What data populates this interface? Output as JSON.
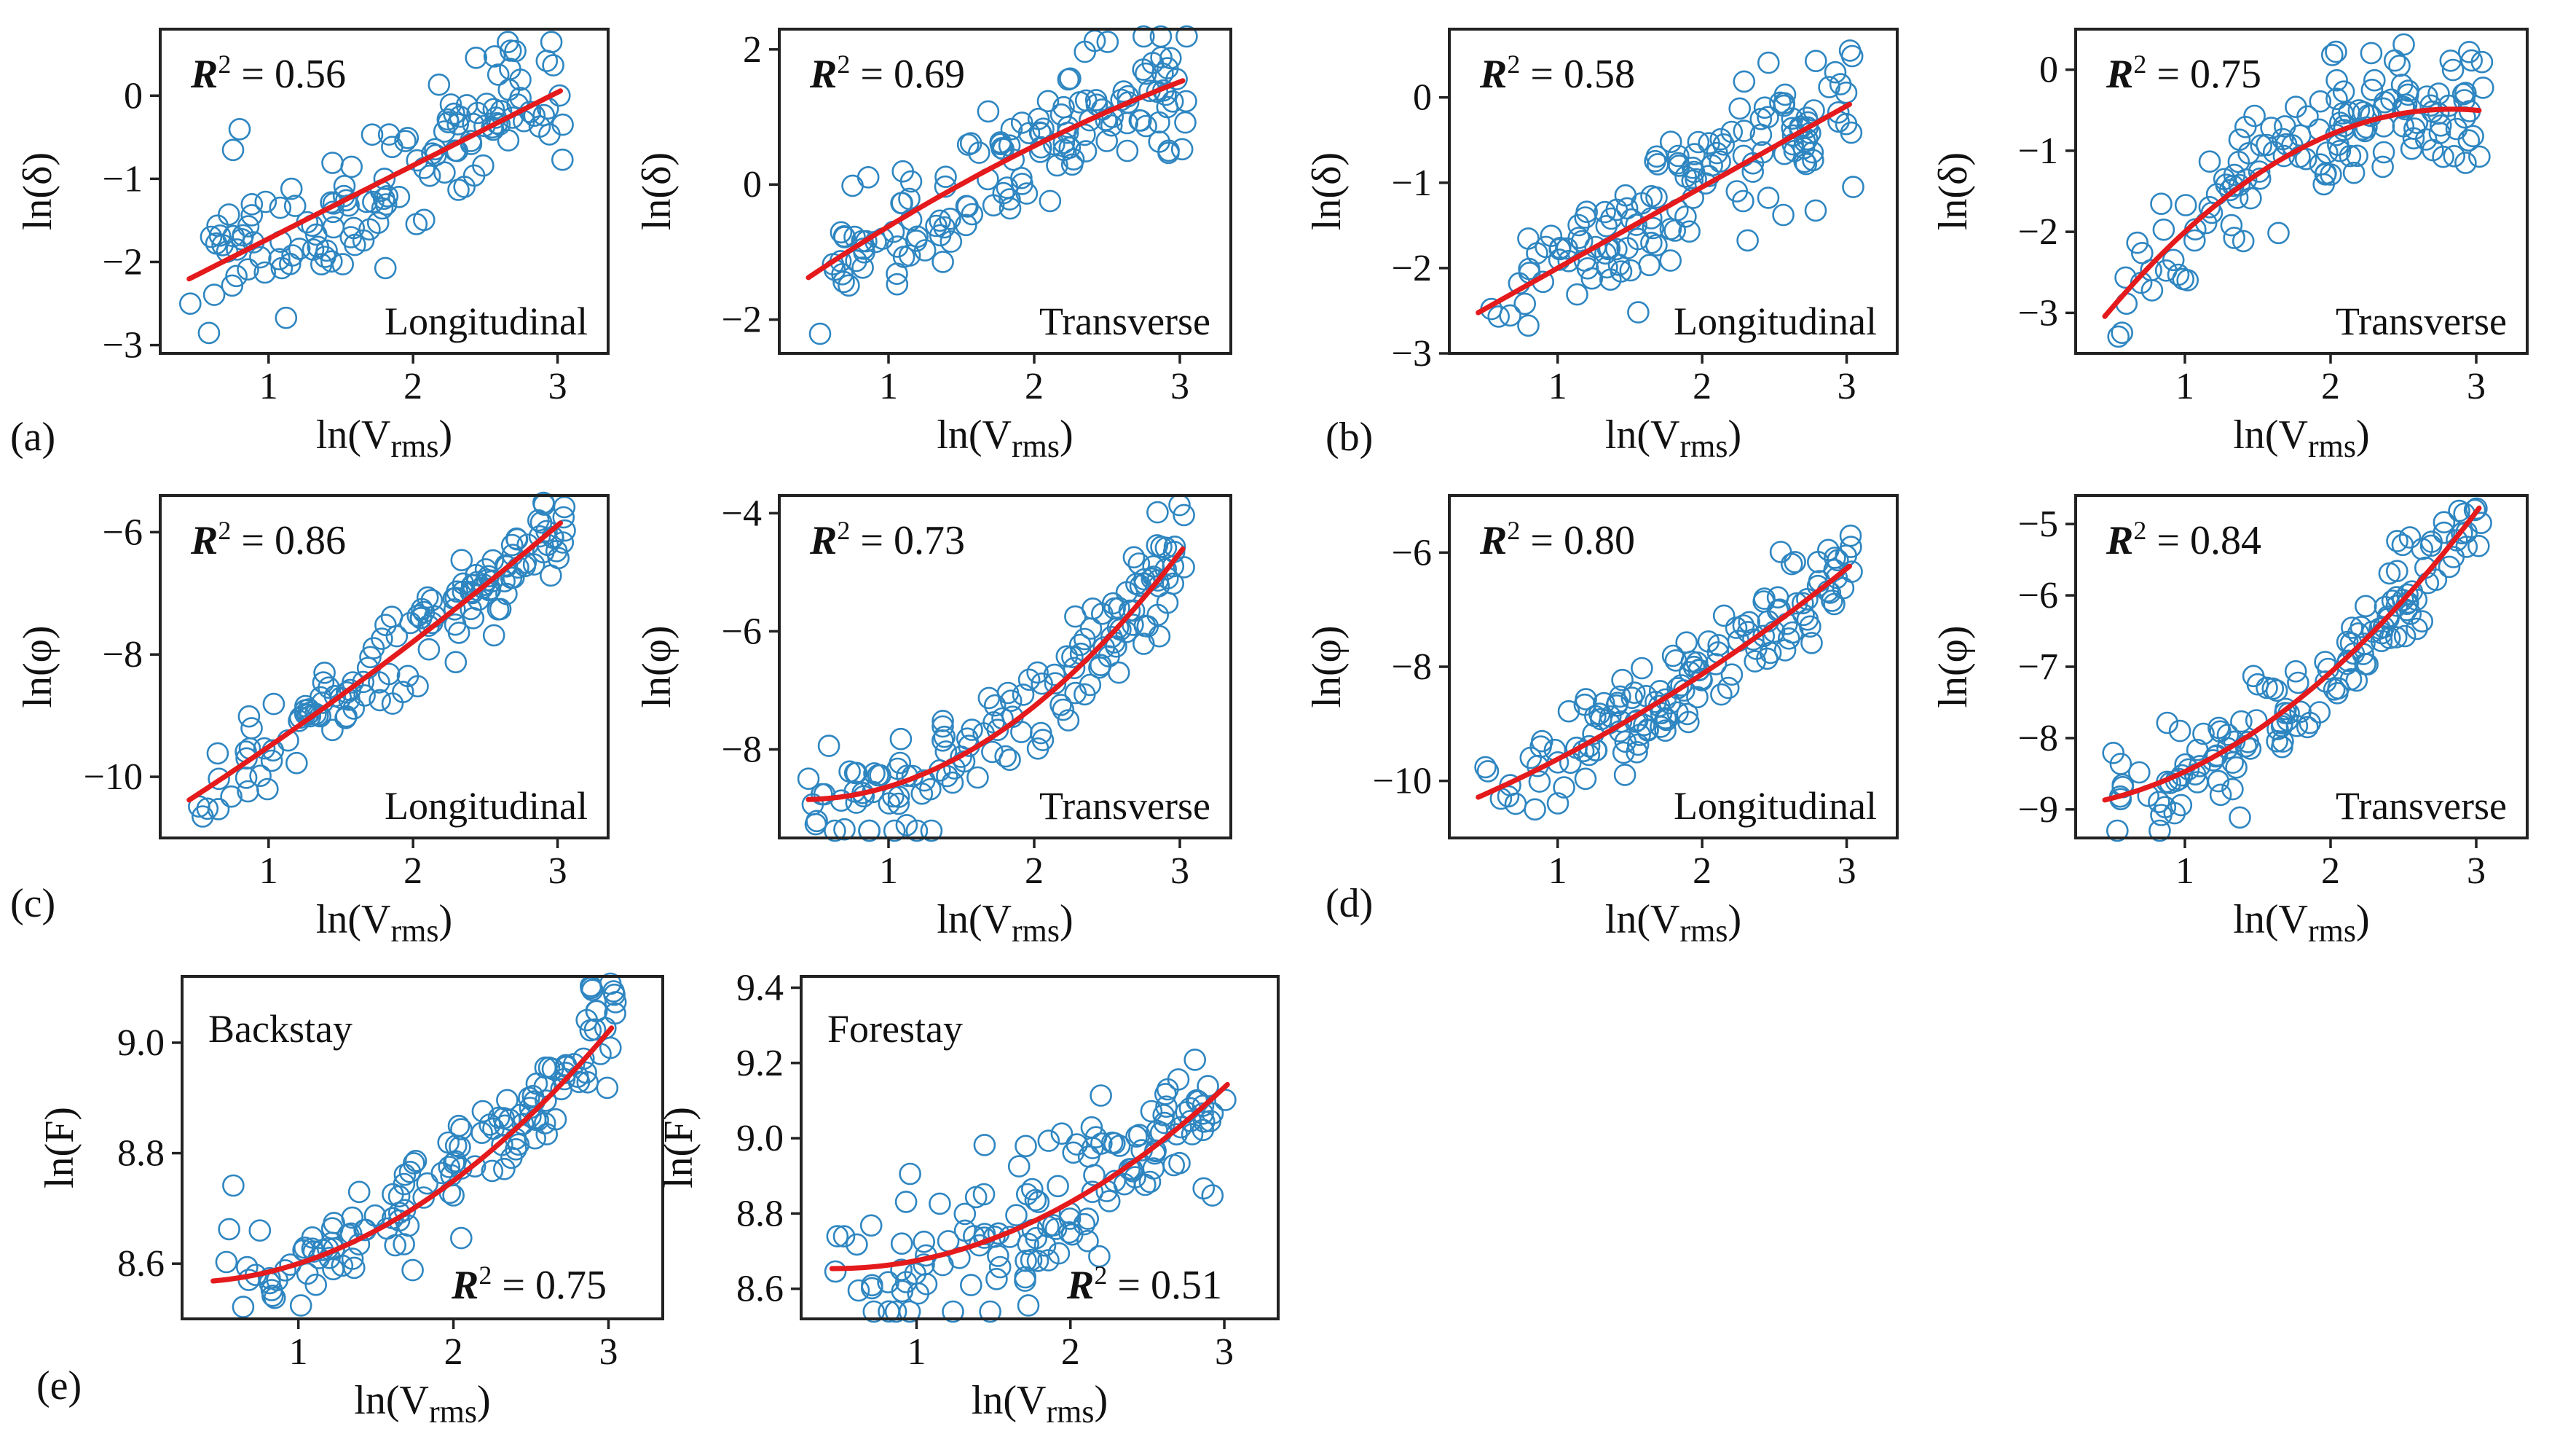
{
  "figure": {
    "colors": {
      "points": "#2e86c1",
      "fit": "#e41a1c",
      "axes": "#222222"
    },
    "panel_labels": [
      "(a)",
      "(b)",
      "(c)",
      "(d)",
      "(e)"
    ]
  },
  "chart_data": [
    {
      "id": "a-long",
      "type": "scatter",
      "panel": "(a)",
      "title": "",
      "corner_label": "Longitudinal",
      "r2": "0.56",
      "xlabel": "ln(V",
      "xlabel_sub": "rms",
      "xlabel_close": ")",
      "ylabel": "ln(δ)",
      "xlim": [
        0.25,
        3.35
      ],
      "ylim": [
        -3.1,
        0.8
      ],
      "xticks": [
        1,
        2,
        3
      ],
      "xtick_labels": [
        "1",
        "2",
        "3"
      ],
      "yticks": [
        -3,
        -2,
        -1,
        0
      ],
      "ytick_labels": [
        "−3",
        "−2",
        "−1",
        "0"
      ],
      "fit": {
        "a": -2.6,
        "b": 0.88,
        "c": 0.0
      },
      "scatter": {
        "n": 140,
        "sd": 0.42,
        "seed": 11
      },
      "series": [
        {
          "name": "data"
        },
        {
          "name": "fit"
        }
      ]
    },
    {
      "id": "a-trans",
      "type": "scatter",
      "panel": "",
      "title": "",
      "corner_label": "Transverse",
      "r2": "0.69",
      "xlabel": "ln(V",
      "xlabel_sub": "rms",
      "xlabel_close": ")",
      "ylabel": "ln(δ)",
      "xlim": [
        0.25,
        3.35
      ],
      "ylim": [
        -2.5,
        2.3
      ],
      "xticks": [
        1,
        2,
        3
      ],
      "xtick_labels": [
        "1",
        "2",
        "3"
      ],
      "yticks": [
        -2,
        0,
        2
      ],
      "ytick_labels": [
        "−2",
        "0",
        "2"
      ],
      "fit": {
        "a": -2.05,
        "b": 1.55,
        "c": -0.12
      },
      "scatter": {
        "n": 140,
        "sd": 0.45,
        "seed": 23
      },
      "series": [
        {
          "name": "data"
        },
        {
          "name": "fit"
        }
      ]
    },
    {
      "id": "b-long",
      "type": "scatter",
      "panel": "(b)",
      "title": "",
      "corner_label": "Longitudinal",
      "r2": "0.58",
      "xlabel": "ln(V",
      "xlabel_sub": "rms",
      "xlabel_close": ")",
      "ylabel": "ln(δ)",
      "xlim": [
        0.25,
        3.35
      ],
      "ylim": [
        -3.0,
        0.8
      ],
      "xticks": [
        1,
        2,
        3
      ],
      "xtick_labels": [
        "1",
        "2",
        "3"
      ],
      "yticks": [
        -2,
        -1,
        0
      ],
      "ytick_labels": [
        "−2",
        "−1",
        "0"
      ],
      "extra_ytick": {
        "value": -3,
        "label": "−3"
      },
      "fit": {
        "a": -2.95,
        "b": 0.95,
        "c": 0.0
      },
      "scatter": {
        "n": 140,
        "sd": 0.42,
        "seed": 37
      },
      "series": [
        {
          "name": "data"
        },
        {
          "name": "fit"
        }
      ]
    },
    {
      "id": "b-trans",
      "type": "scatter",
      "panel": "",
      "title": "",
      "corner_label": "Transverse",
      "r2": "0.75",
      "xlabel": "ln(V",
      "xlabel_sub": "rms",
      "xlabel_close": ")",
      "ylabel": "ln(δ)",
      "xlim": [
        0.25,
        3.35
      ],
      "ylim": [
        -3.5,
        0.5
      ],
      "xticks": [
        1,
        2,
        3
      ],
      "xtick_labels": [
        "1",
        "2",
        "3"
      ],
      "yticks": [
        -3,
        -2,
        -1,
        0
      ],
      "ytick_labels": [
        "−3",
        "−2",
        "−1",
        "0"
      ],
      "fit": {
        "a": -4.1,
        "b": 2.55,
        "c": -0.45
      },
      "scatter": {
        "n": 140,
        "sd": 0.38,
        "seed": 41
      },
      "series": [
        {
          "name": "data"
        },
        {
          "name": "fit"
        }
      ]
    },
    {
      "id": "c-long",
      "type": "scatter",
      "panel": "(c)",
      "title": "",
      "corner_label": "Longitudinal",
      "r2": "0.86",
      "xlabel": "ln(V",
      "xlabel_sub": "rms",
      "xlabel_close": ")",
      "ylabel": "ln(φ)",
      "xlim": [
        0.25,
        3.35
      ],
      "ylim": [
        -11.0,
        -5.4
      ],
      "xticks": [
        1,
        2,
        3
      ],
      "xtick_labels": [
        "1",
        "2",
        "3"
      ],
      "yticks": [
        -10,
        -8,
        -6
      ],
      "ytick_labels": [
        "−10",
        "−8",
        "−6"
      ],
      "fit": {
        "a": -11.05,
        "b": 1.45,
        "c": 0.09
      },
      "scatter": {
        "n": 140,
        "sd": 0.33,
        "seed": 53
      },
      "series": [
        {
          "name": "data"
        },
        {
          "name": "fit"
        }
      ]
    },
    {
      "id": "c-trans",
      "type": "scatter",
      "panel": "",
      "title": "",
      "corner_label": "Transverse",
      "r2": "0.73",
      "xlabel": "ln(V",
      "xlabel_sub": "rms",
      "xlabel_close": ")",
      "ylabel": "ln(φ)",
      "xlim": [
        0.25,
        3.35
      ],
      "ylim": [
        -9.5,
        -3.7
      ],
      "xticks": [
        1,
        2,
        3
      ],
      "xtick_labels": [
        "1",
        "2",
        "3"
      ],
      "yticks": [
        -8,
        -6,
        -4
      ],
      "ytick_labels": [
        "−8",
        "−6",
        "−4"
      ],
      "fit": {
        "a": -8.75,
        "b": -0.5,
        "c": 0.62
      },
      "scatter": {
        "n": 140,
        "sd": 0.45,
        "seed": 67
      },
      "series": [
        {
          "name": "data"
        },
        {
          "name": "fit"
        }
      ]
    },
    {
      "id": "d-long",
      "type": "scatter",
      "panel": "(d)",
      "title": "",
      "corner_label": "Longitudinal",
      "r2": "0.80",
      "xlabel": "ln(V",
      "xlabel_sub": "rms",
      "xlabel_close": ")",
      "ylabel": "ln(φ)",
      "xlim": [
        0.25,
        3.35
      ],
      "ylim": [
        -11.0,
        -5.0
      ],
      "xticks": [
        1,
        2,
        3
      ],
      "xtick_labels": [
        "1",
        "2",
        "3"
      ],
      "yticks": [
        -10,
        -8,
        -6
      ],
      "ytick_labels": [
        "−10",
        "−8",
        "−6"
      ],
      "fit": {
        "a": -10.75,
        "b": 0.95,
        "c": 0.18
      },
      "scatter": {
        "n": 140,
        "sd": 0.38,
        "seed": 79
      },
      "series": [
        {
          "name": "data"
        },
        {
          "name": "fit"
        }
      ]
    },
    {
      "id": "d-trans",
      "type": "scatter",
      "panel": "",
      "title": "",
      "corner_label": "Transverse",
      "r2": "0.84",
      "xlabel": "ln(V",
      "xlabel_sub": "rms",
      "xlabel_close": ")",
      "ylabel": "ln(φ)",
      "xlim": [
        0.25,
        3.35
      ],
      "ylim": [
        -9.4,
        -4.6
      ],
      "xticks": [
        1,
        2,
        3
      ],
      "xtick_labels": [
        "1",
        "2",
        "3"
      ],
      "yticks": [
        -9,
        -8,
        -7,
        -6,
        -5
      ],
      "ytick_labels": [
        "−9",
        "−8",
        "−7",
        "−6",
        "−5"
      ],
      "fit": {
        "a": -9.0,
        "b": 0.1,
        "c": 0.43
      },
      "scatter": {
        "n": 140,
        "sd": 0.32,
        "seed": 83
      },
      "series": [
        {
          "name": "data"
        },
        {
          "name": "fit"
        }
      ]
    },
    {
      "id": "e-back",
      "type": "scatter",
      "panel": "(e)",
      "title": "",
      "corner_label": "Backstay",
      "r2": "0.75",
      "xlabel": "ln(V",
      "xlabel_sub": "rms",
      "xlabel_close": ")",
      "ylabel": "ln(F)",
      "xlim": [
        0.25,
        3.35
      ],
      "ylim": [
        8.5,
        9.12
      ],
      "xticks": [
        1,
        2,
        3
      ],
      "xtick_labels": [
        "1",
        "2",
        "3"
      ],
      "yticks": [
        8.6,
        8.8,
        9.0
      ],
      "ytick_labels": [
        "8.6",
        "8.8",
        "9.0"
      ],
      "fit": {
        "a": 8.57,
        "b": -0.03,
        "c": 0.06
      },
      "scatter": {
        "n": 140,
        "sd": 0.055,
        "seed": 97
      },
      "series": [
        {
          "name": "data"
        },
        {
          "name": "fit"
        }
      ]
    },
    {
      "id": "e-fore",
      "type": "scatter",
      "panel": "",
      "title": "",
      "corner_label": "Forestay",
      "r2": "0.51",
      "xlabel": "ln(V",
      "xlabel_sub": "rms",
      "xlabel_close": ")",
      "ylabel": "ln(F)",
      "xlim": [
        0.25,
        3.35
      ],
      "ylim": [
        8.52,
        9.43
      ],
      "xticks": [
        1,
        2,
        3
      ],
      "xtick_labels": [
        "1",
        "2",
        "3"
      ],
      "yticks": [
        8.6,
        8.8,
        9.0,
        9.2,
        9.4
      ],
      "ytick_labels": [
        "8.6",
        "8.8",
        "9.0",
        "9.2",
        "9.4"
      ],
      "fit": {
        "a": 8.67,
        "b": -0.07,
        "c": 0.075
      },
      "scatter": {
        "n": 140,
        "sd": 0.1,
        "seed": 101
      },
      "series": [
        {
          "name": "data"
        },
        {
          "name": "fit"
        }
      ]
    }
  ]
}
